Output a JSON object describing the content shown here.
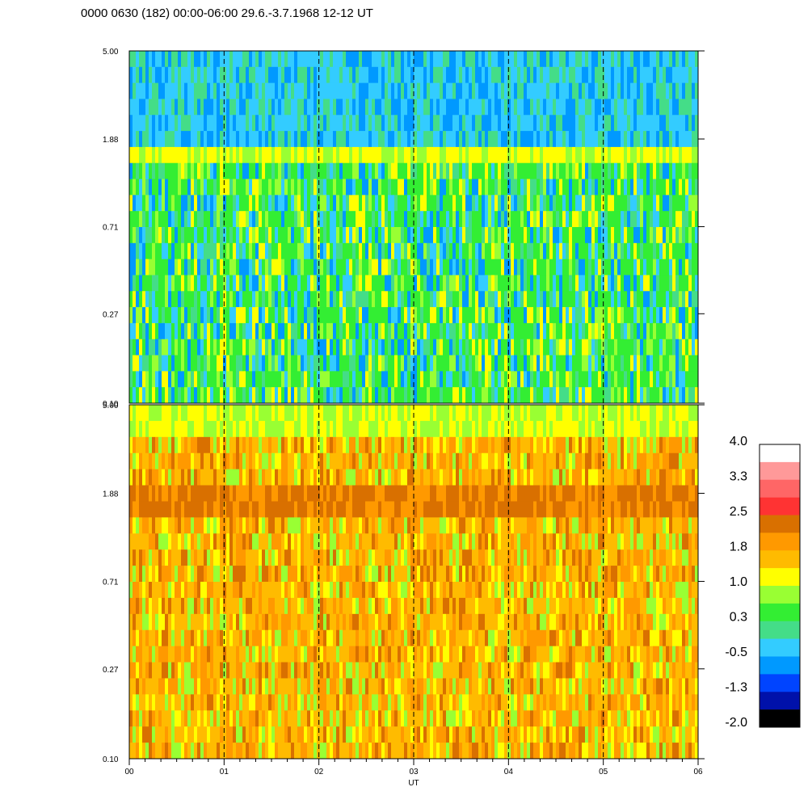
{
  "chart_data": {
    "type": "heatmap",
    "title": "0000 0630 (182) 00:00-06:00 29.6.-3.7.1968  12-12 UT",
    "xlabel": "UT",
    "x_ticks": [
      "00",
      "01",
      "02",
      "03",
      "04",
      "05",
      "06"
    ],
    "xlim": [
      0,
      6
    ],
    "y_scale": "log",
    "ylim": [
      0.1,
      5.0
    ],
    "panels": [
      {
        "name": "",
        "y_ticks": [
          "5.00",
          "1.88",
          "0.71",
          "0.27",
          "0.10"
        ],
        "dominant_level": 0.3
      },
      {
        "name": "",
        "y_ticks": [
          "5.00",
          "1.88",
          "0.71",
          "0.27",
          "0.10"
        ],
        "dominant_level": 1.8
      }
    ],
    "colorbar": {
      "labels": [
        "4.0",
        "3.3",
        "2.5",
        "1.8",
        "1.0",
        "0.3",
        "-0.5",
        "-1.3",
        "-2.0"
      ],
      "colors": [
        "#ffffff",
        "#ff9999",
        "#ff6666",
        "#ff3333",
        "#d97000",
        "#ff9900",
        "#ffbb00",
        "#ffff00",
        "#99ff33",
        "#33ee33",
        "#44dd88",
        "#33ccff",
        "#0099ff",
        "#0044ff",
        "#0011aa",
        "#000000"
      ]
    }
  }
}
